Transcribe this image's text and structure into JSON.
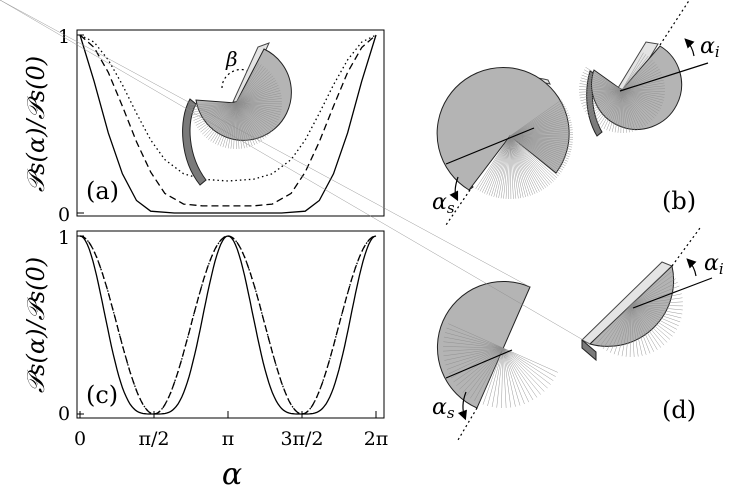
{
  "chart_data": [
    {
      "panel": "(a)",
      "type": "line",
      "ylabel": "𝒫s(α)/𝒫s(0)",
      "xlim": [
        0,
        6.2832
      ],
      "ylim": [
        0,
        1
      ],
      "yticks": [
        "0",
        "1"
      ],
      "series": [
        {
          "style": "solid",
          "x": [
            0,
            0.3,
            0.6,
            0.9,
            1.2,
            1.5,
            2.0,
            3.1416,
            4.28,
            4.78,
            5.08,
            5.38,
            5.68,
            5.98,
            6.2832
          ],
          "y": [
            1.0,
            0.74,
            0.45,
            0.22,
            0.07,
            0.01,
            0.0,
            0.0,
            0.0,
            0.01,
            0.07,
            0.22,
            0.45,
            0.74,
            1.0
          ]
        },
        {
          "style": "dashed",
          "x": [
            0,
            0.3,
            0.6,
            0.9,
            1.2,
            1.5,
            1.8,
            2.2,
            2.6,
            3.1416,
            3.68,
            4.08,
            4.48,
            4.78,
            5.08,
            5.38,
            5.68,
            5.98,
            6.2832
          ],
          "y": [
            1.0,
            0.93,
            0.79,
            0.6,
            0.4,
            0.23,
            0.11,
            0.05,
            0.04,
            0.04,
            0.04,
            0.05,
            0.11,
            0.23,
            0.4,
            0.6,
            0.79,
            0.93,
            1.0
          ]
        },
        {
          "style": "dotted",
          "x": [
            0,
            0.3,
            0.6,
            0.9,
            1.2,
            1.5,
            1.8,
            2.2,
            2.6,
            3.1416,
            3.68,
            4.08,
            4.48,
            4.78,
            5.08,
            5.38,
            5.68,
            5.98,
            6.2832
          ],
          "y": [
            1.0,
            0.96,
            0.86,
            0.72,
            0.56,
            0.41,
            0.3,
            0.22,
            0.19,
            0.18,
            0.19,
            0.22,
            0.3,
            0.41,
            0.56,
            0.72,
            0.86,
            0.96,
            1.0
          ]
        }
      ],
      "inset_label": "β"
    },
    {
      "panel": "(c)",
      "type": "line",
      "ylabel": "𝒫s(α)/𝒫s(0)",
      "xlabel": "α",
      "xlim": [
        0,
        6.2832
      ],
      "ylim": [
        0,
        1
      ],
      "yticks": [
        "0",
        "1"
      ],
      "xticks": [
        "0",
        "π/2",
        "π",
        "3π/2",
        "2π"
      ],
      "series": [
        {
          "style": "solid",
          "formula": "cos^4(alpha)"
        },
        {
          "style": "dashed",
          "formula": "cos^2(alpha)"
        },
        {
          "style": "dotted",
          "formula": "cos^2(alpha)"
        }
      ]
    }
  ],
  "diagrams": {
    "panel_b": {
      "label": "(b)",
      "alpha_s": "α",
      "alpha_s_sub": "s",
      "alpha_i": "α",
      "alpha_i_sub": "i"
    },
    "panel_d": {
      "label": "(d)",
      "alpha_s": "α",
      "alpha_s_sub": "s",
      "alpha_i": "α",
      "alpha_i_sub": "i"
    }
  }
}
